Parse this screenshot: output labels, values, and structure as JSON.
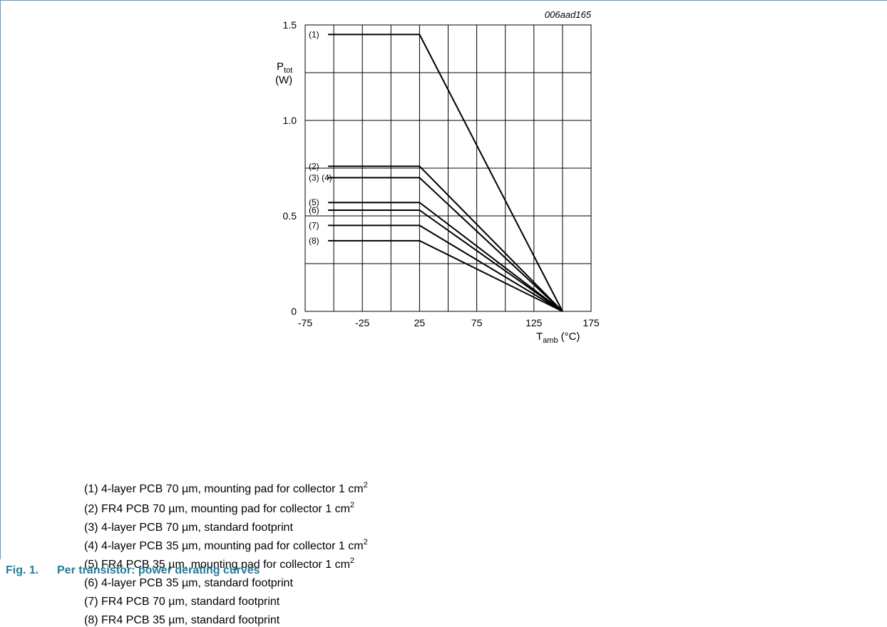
{
  "chart_data": {
    "type": "line",
    "code": "006aad165",
    "ylabel": {
      "symbol": "P",
      "sub": "tot",
      "unit": "(W)"
    },
    "xlabel": {
      "symbol": "T",
      "sub": "amb",
      "unit": "(°C)"
    },
    "xlim": [
      -75,
      175
    ],
    "ylim": [
      0,
      1.5
    ],
    "x_ticks": [
      "-75",
      "-25",
      "25",
      "75",
      "125",
      "175"
    ],
    "y_ticks": [
      "0",
      "0.5",
      "1.0",
      "1.5"
    ],
    "x_grid_step": 25,
    "y_grid_step": 0.25,
    "grid": true,
    "series": [
      {
        "label": "(1)",
        "x": [
          -55,
          25,
          150
        ],
        "y": [
          1.45,
          1.45,
          0
        ]
      },
      {
        "label": "(2)",
        "x": [
          -55,
          25,
          150
        ],
        "y": [
          0.76,
          0.76,
          0
        ]
      },
      {
        "label": "(3) (4)",
        "x": [
          -55,
          25,
          150
        ],
        "y": [
          0.7,
          0.7,
          0
        ]
      },
      {
        "label": "(5)",
        "x": [
          -55,
          25,
          150
        ],
        "y": [
          0.57,
          0.57,
          0
        ]
      },
      {
        "label": "(6)",
        "x": [
          -55,
          25,
          150
        ],
        "y": [
          0.53,
          0.53,
          0
        ]
      },
      {
        "label": "(7)",
        "x": [
          -55,
          25,
          150
        ],
        "y": [
          0.45,
          0.45,
          0
        ]
      },
      {
        "label": "(8)",
        "x": [
          -55,
          25,
          150
        ],
        "y": [
          0.37,
          0.37,
          0
        ]
      }
    ]
  },
  "notes": [
    {
      "text": "(1) 4-layer PCB 70 µm, mounting pad for collector 1 cm",
      "sup": "2"
    },
    {
      "text": "(2) FR4 PCB 70 µm, mounting pad for collector 1 cm",
      "sup": "2"
    },
    {
      "text": "(3) 4-layer PCB 70 µm, standard footprint",
      "sup": ""
    },
    {
      "text": "(4) 4-layer PCB 35 µm, mounting pad for collector 1 cm",
      "sup": "2"
    },
    {
      "text": "(5) FR4 PCB 35 µm, mounting pad for collector 1 cm",
      "sup": "2"
    },
    {
      "text": "(6) 4-layer PCB 35 µm, standard footprint",
      "sup": ""
    },
    {
      "text": "(7) FR4 PCB 70 µm, standard footprint",
      "sup": ""
    },
    {
      "text": "(8) FR4 PCB 35 µm, standard footprint",
      "sup": ""
    }
  ],
  "caption": {
    "number": "Fig. 1.",
    "title": "Per transistor: power derating curves"
  }
}
